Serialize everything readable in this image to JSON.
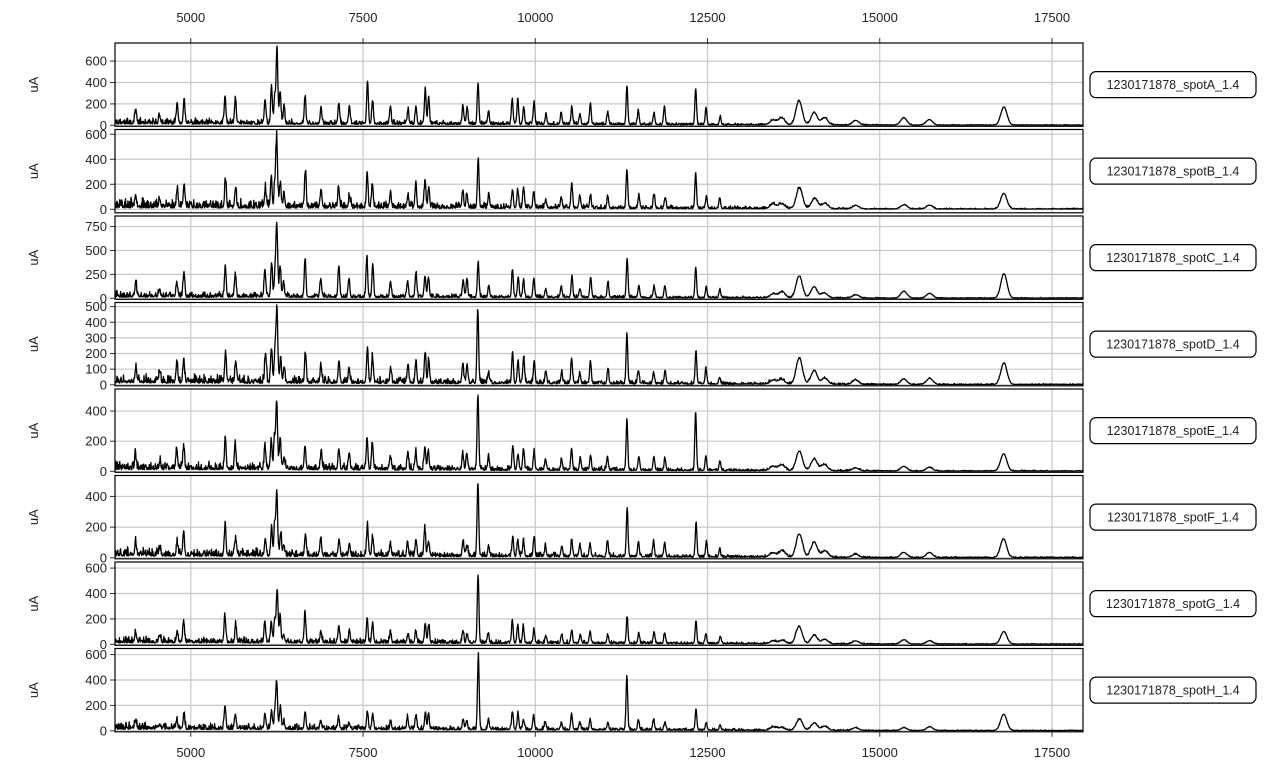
{
  "chart_data": {
    "type": "line",
    "xlim": [
      3900,
      17950
    ],
    "x_ticks": [
      5000,
      7500,
      10000,
      12500,
      15000,
      17500
    ],
    "x_tick_labels": [
      "5000",
      "7500",
      "10000",
      "12500",
      "15000",
      "17500"
    ],
    "grid": true,
    "ylabel": "uA",
    "common_peaks": [
      {
        "x": 4200,
        "h": 0.22
      },
      {
        "x": 4550,
        "h": 0.12
      },
      {
        "x": 4800,
        "h": 0.25
      },
      {
        "x": 4900,
        "h": 0.4
      },
      {
        "x": 5500,
        "h": 0.45
      },
      {
        "x": 5650,
        "h": 0.3
      },
      {
        "x": 6080,
        "h": 0.35
      },
      {
        "x": 6170,
        "h": 0.5
      },
      {
        "x": 6220,
        "h": 0.4
      },
      {
        "x": 6250,
        "h": 1.0
      },
      {
        "x": 6300,
        "h": 0.45
      },
      {
        "x": 6350,
        "h": 0.2
      },
      {
        "x": 6660,
        "h": 0.45
      },
      {
        "x": 6890,
        "h": 0.25
      },
      {
        "x": 7150,
        "h": 0.35
      },
      {
        "x": 7300,
        "h": 0.2
      },
      {
        "x": 7560,
        "h": 0.5
      },
      {
        "x": 7640,
        "h": 0.4
      },
      {
        "x": 7900,
        "h": 0.2
      },
      {
        "x": 8150,
        "h": 0.22
      },
      {
        "x": 8270,
        "h": 0.28
      },
      {
        "x": 8400,
        "h": 0.4
      },
      {
        "x": 8450,
        "h": 0.3
      },
      {
        "x": 8950,
        "h": 0.3
      },
      {
        "x": 9010,
        "h": 0.22
      },
      {
        "x": 9170,
        "h": 0.75
      },
      {
        "x": 9320,
        "h": 0.2
      },
      {
        "x": 9670,
        "h": 0.35
      },
      {
        "x": 9750,
        "h": 0.3
      },
      {
        "x": 9830,
        "h": 0.3
      },
      {
        "x": 9980,
        "h": 0.3
      },
      {
        "x": 10150,
        "h": 0.15
      },
      {
        "x": 10380,
        "h": 0.2
      },
      {
        "x": 10530,
        "h": 0.3
      },
      {
        "x": 10650,
        "h": 0.15
      },
      {
        "x": 10800,
        "h": 0.25
      },
      {
        "x": 11050,
        "h": 0.2
      },
      {
        "x": 11330,
        "h": 0.6
      },
      {
        "x": 11500,
        "h": 0.2
      },
      {
        "x": 11720,
        "h": 0.2
      },
      {
        "x": 11880,
        "h": 0.2
      },
      {
        "x": 12330,
        "h": 0.55
      },
      {
        "x": 12480,
        "h": 0.2
      },
      {
        "x": 12680,
        "h": 0.12
      },
      {
        "x": 13450,
        "h": 0.06
      },
      {
        "x": 13580,
        "h": 0.08
      },
      {
        "x": 13830,
        "h": 0.3
      },
      {
        "x": 14050,
        "h": 0.2
      },
      {
        "x": 14200,
        "h": 0.08
      },
      {
        "x": 14650,
        "h": 0.05
      },
      {
        "x": 15350,
        "h": 0.08
      },
      {
        "x": 15720,
        "h": 0.07
      },
      {
        "x": 16800,
        "h": 0.3
      }
    ],
    "series": [
      {
        "name": "1230171878_spotA_1.4",
        "yticks": [
          0,
          200,
          400,
          600
        ],
        "ylim": [
          0,
          760
        ],
        "max_peak": 700,
        "noise": 22,
        "seed": 11
      },
      {
        "name": "1230171878_spotB_1.4",
        "yticks": [
          0,
          200,
          400,
          600
        ],
        "ylim": [
          -20,
          630
        ],
        "max_peak": 540,
        "noise": 30,
        "seed": 23
      },
      {
        "name": "1230171878_spotC_1.4",
        "yticks": [
          0,
          250,
          500,
          750
        ],
        "ylim": [
          0,
          850
        ],
        "max_peak": 740,
        "noise": 25,
        "seed": 37
      },
      {
        "name": "1230171878_spotD_1.4",
        "yticks": [
          0,
          100,
          200,
          300,
          400,
          500
        ],
        "ylim": [
          0,
          520
        ],
        "max_peak": 470,
        "noise": 22,
        "seed": 41
      },
      {
        "name": "1230171878_spotE_1.4",
        "yticks": [
          0,
          200,
          400
        ],
        "ylim": [
          0,
          540
        ],
        "max_peak": 450,
        "noise": 22,
        "seed": 53
      },
      {
        "name": "1230171878_spotF_1.4",
        "yticks": [
          0,
          200,
          400
        ],
        "ylim": [
          0,
          530
        ],
        "max_peak": 420,
        "noise": 22,
        "seed": 67
      },
      {
        "name": "1230171878_spotG_1.4",
        "yticks": [
          0,
          200,
          400,
          600
        ],
        "ylim": [
          0,
          640
        ],
        "max_peak": 420,
        "noise": 20,
        "seed": 79
      },
      {
        "name": "1230171878_spotH_1.4",
        "yticks": [
          0,
          200,
          400,
          600
        ],
        "ylim": [
          0,
          640
        ],
        "max_peak": 350,
        "noise": 20,
        "seed": 97
      }
    ],
    "series_overrides": {
      "1230171878_spotA_1.4": {
        "9170": 380,
        "6250": 700
      },
      "1230171878_spotB_1.4": {
        "9170": 400,
        "6250": 540
      },
      "1230171878_spotC_1.4": {
        "9170": 370,
        "6250": 740
      },
      "1230171878_spotD_1.4": {
        "9170": 470,
        "6250": 460
      },
      "1230171878_spotE_1.4": {
        "9170": 500,
        "12330": 390,
        "6250": 450
      },
      "1230171878_spotF_1.4": {
        "9170": 480,
        "11330": 320,
        "6250": 420
      },
      "1230171878_spotG_1.4": {
        "9170": 540,
        "6250": 420
      },
      "1230171878_spotH_1.4": {
        "9170": 580,
        "11330": 430,
        "6250": 350
      }
    }
  }
}
